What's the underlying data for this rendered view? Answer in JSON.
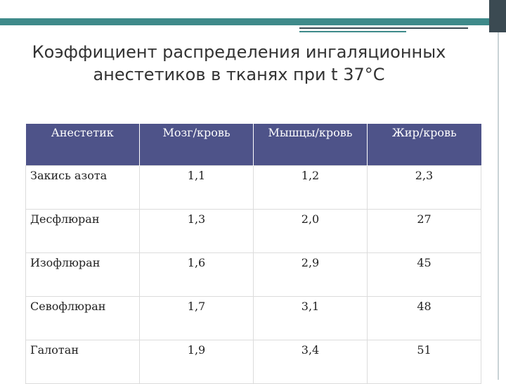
{
  "slide": {
    "title_line1": "Коэффициент распределения ингаляционных",
    "title_line2": "анестетиков в тканях при t 37°С"
  },
  "table": {
    "headers": [
      "Анестетик",
      "Мозг/кровь",
      "Мышцы/кровь",
      "Жир/кровь"
    ],
    "rows": [
      [
        "Закись азота",
        "1,1",
        "1,2",
        "2,3"
      ],
      [
        "Десфлюран",
        "1,3",
        "2,0",
        "27"
      ],
      [
        "Изофлюран",
        "1,6",
        "2,9",
        "45"
      ],
      [
        "Севофлюран",
        "1,7",
        "3,1",
        "48"
      ],
      [
        "Галотан",
        "1,9",
        "3,4",
        "51"
      ]
    ]
  },
  "colors": {
    "header_bg": "#4e5389",
    "teal": "#3e8a8a",
    "dark": "#3b4a52"
  }
}
